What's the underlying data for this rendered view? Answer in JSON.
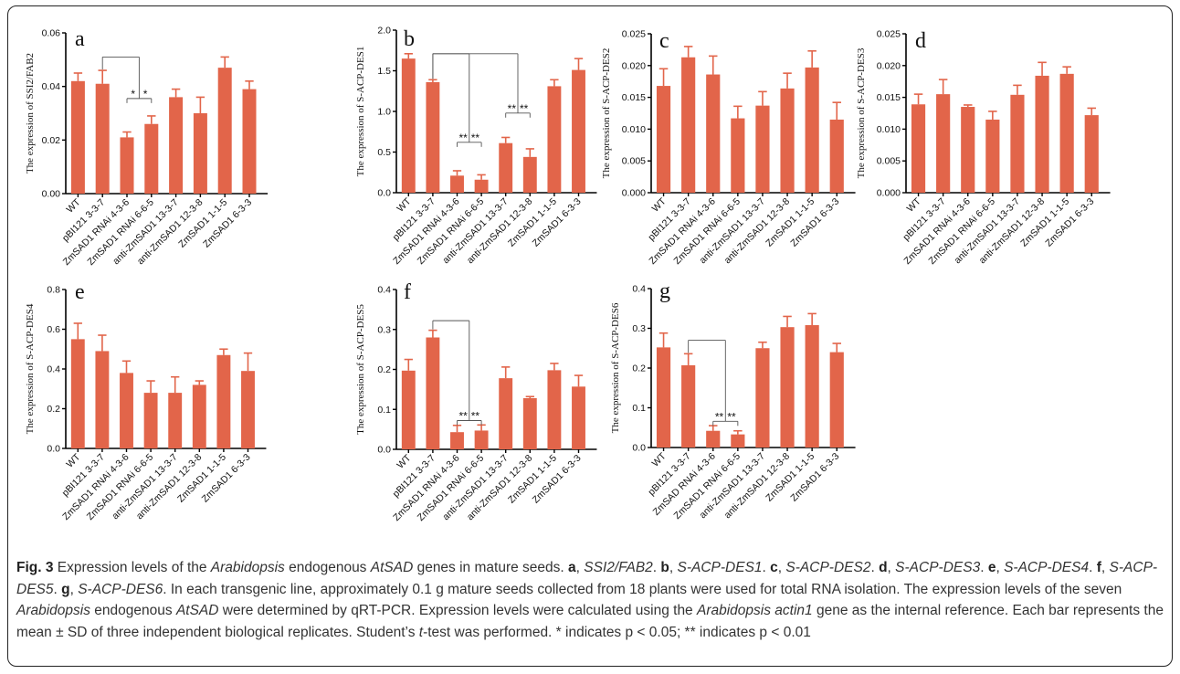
{
  "colors": {
    "bar": "#E2654A",
    "axis": "#000000",
    "text": "#111111"
  },
  "chart_data": [
    {
      "panel": "a",
      "type": "bar",
      "ylabel": "The expression of SSI2/FAB2",
      "ylim": [
        0,
        0.06
      ],
      "yticks": [
        0.0,
        0.02,
        0.04,
        0.06
      ],
      "ytick_labels": [
        "0.00",
        "0.02",
        "0.04",
        "0.06"
      ],
      "categories": [
        "WT",
        "pBI121 3-3-7",
        "ZmSAD1 RNAi 4-3-6",
        "ZmSAD1 RNAi 6-6-5",
        "anti-ZmSAD1 13-3-7",
        "anti-ZmSAD1 12-3-8",
        "ZmSAD1 1-1-5",
        "ZmSAD1 6-3-3"
      ],
      "values": [
        0.042,
        0.041,
        0.021,
        0.026,
        0.036,
        0.03,
        0.047,
        0.039
      ],
      "errors": [
        0.003,
        0.005,
        0.002,
        0.003,
        0.003,
        0.006,
        0.004,
        0.003
      ],
      "significance": [
        {
          "type": "bracket",
          "from": 1,
          "to": [
            2,
            3
          ],
          "topY": 0.051,
          "starY": 0.0355,
          "stars": [
            "*",
            "*"
          ]
        }
      ]
    },
    {
      "panel": "b",
      "type": "bar",
      "ylabel": "The expression of S-ACP-DES1",
      "ylim": [
        0,
        2.0
      ],
      "yticks": [
        0.0,
        0.5,
        1.0,
        1.5,
        2.0
      ],
      "ytick_labels": [
        "0.0",
        "0.5",
        "1.0",
        "1.5",
        "2.0"
      ],
      "categories": [
        "WT",
        "pBI121 3-3-7",
        "ZmSAD1 RNAi 4-3-6",
        "ZmSAD1 RNAi 6-6-5",
        "anti-ZmSAD1 13-3-7",
        "anti-ZmSAD1 12-3-8",
        "ZmSAD1 1-1-5",
        "ZmSAD1 6-3-3"
      ],
      "values": [
        1.65,
        1.36,
        0.21,
        0.16,
        0.61,
        0.44,
        1.31,
        1.51
      ],
      "errors": [
        0.06,
        0.03,
        0.06,
        0.06,
        0.07,
        0.1,
        0.08,
        0.14
      ],
      "significance": [
        {
          "type": "bracket",
          "from": 1,
          "to": [
            2,
            3
          ],
          "topY": 1.71,
          "starY": 0.62,
          "stars": [
            "**",
            "**"
          ]
        },
        {
          "type": "bracket",
          "from": 1,
          "to": [
            4,
            5
          ],
          "topY": 1.71,
          "starY": 0.98,
          "stars": [
            "**",
            "**"
          ]
        }
      ]
    },
    {
      "panel": "c",
      "type": "bar",
      "ylabel": "The expression of S-ACP-DES2",
      "ylim": [
        0,
        0.025
      ],
      "yticks": [
        0.0,
        0.005,
        0.01,
        0.015,
        0.02,
        0.025
      ],
      "ytick_labels": [
        "0.000",
        "0.005",
        "0.010",
        "0.015",
        "0.020",
        "0.025"
      ],
      "categories": [
        "WT",
        "pBI121 3-3-7",
        "ZmSAD1 RNAi 4-3-6",
        "ZmSAD1 RNAi 6-6-5",
        "anti-ZmSAD1 13-3-7",
        "anti-ZmSAD1 12-3-8",
        "ZmSAD1 1-1-5",
        "ZmSAD1 6-3-3"
      ],
      "values": [
        0.0168,
        0.0213,
        0.0186,
        0.0117,
        0.0137,
        0.0164,
        0.0197,
        0.0115
      ],
      "errors": [
        0.0027,
        0.0017,
        0.0029,
        0.0019,
        0.0022,
        0.0024,
        0.0026,
        0.0027
      ],
      "significance": []
    },
    {
      "panel": "d",
      "type": "bar",
      "ylabel": "The expression of  S-ACP-DES3",
      "ylim": [
        0,
        0.025
      ],
      "yticks": [
        0.0,
        0.005,
        0.01,
        0.015,
        0.02,
        0.025
      ],
      "ytick_labels": [
        "0.000",
        "0.005",
        "0.010",
        "0.015",
        "0.020",
        "0.025"
      ],
      "categories": [
        "WT",
        "pBI121 3-3-7",
        "ZmSAD1 RNAi 4-3-6",
        "ZmSAD1 RNAi 6-6-5",
        "anti-ZmSAD1 13-3-7",
        "anti-ZmSAD1 12-3-8",
        "ZmSAD1 1-1-5",
        "ZmSAD1 6-3-3"
      ],
      "values": [
        0.0139,
        0.0155,
        0.0135,
        0.0115,
        0.0154,
        0.0184,
        0.0187,
        0.0122
      ],
      "errors": [
        0.0016,
        0.0023,
        0.0003,
        0.0013,
        0.0015,
        0.0021,
        0.0011,
        0.0011
      ],
      "significance": []
    },
    {
      "panel": "e",
      "type": "bar",
      "ylabel": "The expression of S-ACP-DES4",
      "ylim": [
        0,
        0.8
      ],
      "yticks": [
        0.0,
        0.2,
        0.4,
        0.6,
        0.8
      ],
      "ytick_labels": [
        "0.0",
        "0.2",
        "0.4",
        "0.6",
        "0.8"
      ],
      "categories": [
        "WT",
        "pBI121 3-3-7",
        "ZmSAD1 RNAi 4-3-6",
        "ZmSAD1 RNAi 6-6-5",
        "anti-ZmSAD1 13-3-7",
        "anti-ZmSAD1 12-3-8",
        "ZmSAD1 1-1-5",
        "ZmSAD1 6-3-3"
      ],
      "values": [
        0.55,
        0.49,
        0.38,
        0.28,
        0.28,
        0.32,
        0.47,
        0.39
      ],
      "errors": [
        0.08,
        0.08,
        0.06,
        0.06,
        0.08,
        0.02,
        0.03,
        0.09
      ],
      "significance": []
    },
    {
      "panel": "f",
      "type": "bar",
      "ylabel": "The expression of S-ACP-DES5",
      "ylim": [
        0,
        0.4
      ],
      "yticks": [
        0.0,
        0.1,
        0.2,
        0.3,
        0.4
      ],
      "ytick_labels": [
        "0.0",
        "0.1",
        "0.2",
        "0.3",
        "0.4"
      ],
      "categories": [
        "WT",
        "pBI121 3-3-7",
        "ZmSAD1 RNAi 4-3-6",
        "ZmSAD1 RNAi 6-6-5",
        "anti-ZmSAD1 13-3-7",
        "anti-ZmSAD1 12-3-8",
        "ZmSAD1 1-1-5",
        "ZmSAD1 6-3-3"
      ],
      "values": [
        0.197,
        0.28,
        0.043,
        0.047,
        0.178,
        0.128,
        0.198,
        0.157
      ],
      "errors": [
        0.028,
        0.018,
        0.017,
        0.014,
        0.028,
        0.004,
        0.017,
        0.028
      ],
      "significance": [
        {
          "type": "bracket",
          "from": 1,
          "to": [
            2,
            3
          ],
          "topY": 0.322,
          "starY": 0.072,
          "stars": [
            "**",
            "**"
          ]
        }
      ]
    },
    {
      "panel": "g",
      "type": "bar",
      "ylabel": "The expression of S-ACP-DES6",
      "ylim": [
        0,
        0.4
      ],
      "yticks": [
        0.0,
        0.1,
        0.2,
        0.3,
        0.4
      ],
      "ytick_labels": [
        "0.0",
        "0.1",
        "0.2",
        "0.3",
        "0.4"
      ],
      "categories": [
        "WT",
        "pBI121 3-3-7",
        "ZmSAD RNAi 4-3-6",
        "ZmSAD1 RNAi 6-6-5",
        "anti-ZmSAD1 13-3-7",
        "anti-ZmSAD1 12-3-8",
        "ZmSAD1 1-1-5",
        "ZmSAD1 6-3-3"
      ],
      "values": [
        0.252,
        0.207,
        0.042,
        0.033,
        0.25,
        0.303,
        0.308,
        0.24
      ],
      "errors": [
        0.036,
        0.029,
        0.013,
        0.009,
        0.015,
        0.027,
        0.029,
        0.022
      ],
      "significance": [
        {
          "type": "bracket",
          "from": 1,
          "to": [
            2,
            3
          ],
          "topY": 0.27,
          "starY": 0.066,
          "stars": [
            "**",
            "**"
          ]
        }
      ]
    }
  ],
  "caption": {
    "segments": [
      {
        "t": "Fig. 3",
        "s": "b"
      },
      {
        "t": " Expression levels of the ",
        "s": ""
      },
      {
        "t": "Arabidopsis",
        "s": "i"
      },
      {
        "t": " endogenous ",
        "s": ""
      },
      {
        "t": "AtSAD",
        "s": "i"
      },
      {
        "t": " genes in mature seeds. ",
        "s": ""
      },
      {
        "t": "a",
        "s": "b"
      },
      {
        "t": ", ",
        "s": ""
      },
      {
        "t": "SSI2/FAB2",
        "s": "i"
      },
      {
        "t": ". ",
        "s": ""
      },
      {
        "t": "b",
        "s": "b"
      },
      {
        "t": ", ",
        "s": ""
      },
      {
        "t": "S-ACP-DES1",
        "s": "i"
      },
      {
        "t": ". ",
        "s": ""
      },
      {
        "t": "c",
        "s": "b"
      },
      {
        "t": ", ",
        "s": ""
      },
      {
        "t": "S-ACP-DES2",
        "s": "i"
      },
      {
        "t": ". ",
        "s": ""
      },
      {
        "t": "d",
        "s": "b"
      },
      {
        "t": ", ",
        "s": ""
      },
      {
        "t": "S-ACP-DES3",
        "s": "i"
      },
      {
        "t": ". ",
        "s": ""
      },
      {
        "t": "e",
        "s": "b"
      },
      {
        "t": ", ",
        "s": ""
      },
      {
        "t": "S-ACP-DES4",
        "s": "i"
      },
      {
        "t": ". ",
        "s": ""
      },
      {
        "t": "f",
        "s": "b"
      },
      {
        "t": ", ",
        "s": ""
      },
      {
        "t": "S-ACP-DES5",
        "s": "i"
      },
      {
        "t": ". ",
        "s": ""
      },
      {
        "t": "g",
        "s": "b"
      },
      {
        "t": ", ",
        "s": ""
      },
      {
        "t": "S-ACP-DES6",
        "s": "i"
      },
      {
        "t": ". In each transgenic line, approximately 0.1 g mature seeds collected from 18 plants were used for total RNA isolation. The expression levels of the seven ",
        "s": ""
      },
      {
        "t": "Arabidopsis",
        "s": "i"
      },
      {
        "t": " endogenous ",
        "s": ""
      },
      {
        "t": "AtSAD",
        "s": "i"
      },
      {
        "t": " were determined by qRT-PCR. Expression levels were calculated using the ",
        "s": ""
      },
      {
        "t": "Arabidopsis actin1",
        "s": "i"
      },
      {
        "t": " gene as the internal reference. Each bar represents the mean ± SD of three independent biological replicates. Student’s ",
        "s": ""
      },
      {
        "t": "t",
        "s": "i"
      },
      {
        "t": "-test was performed. * indicates p < 0.05; ** indicates p < 0.01",
        "s": ""
      }
    ]
  }
}
